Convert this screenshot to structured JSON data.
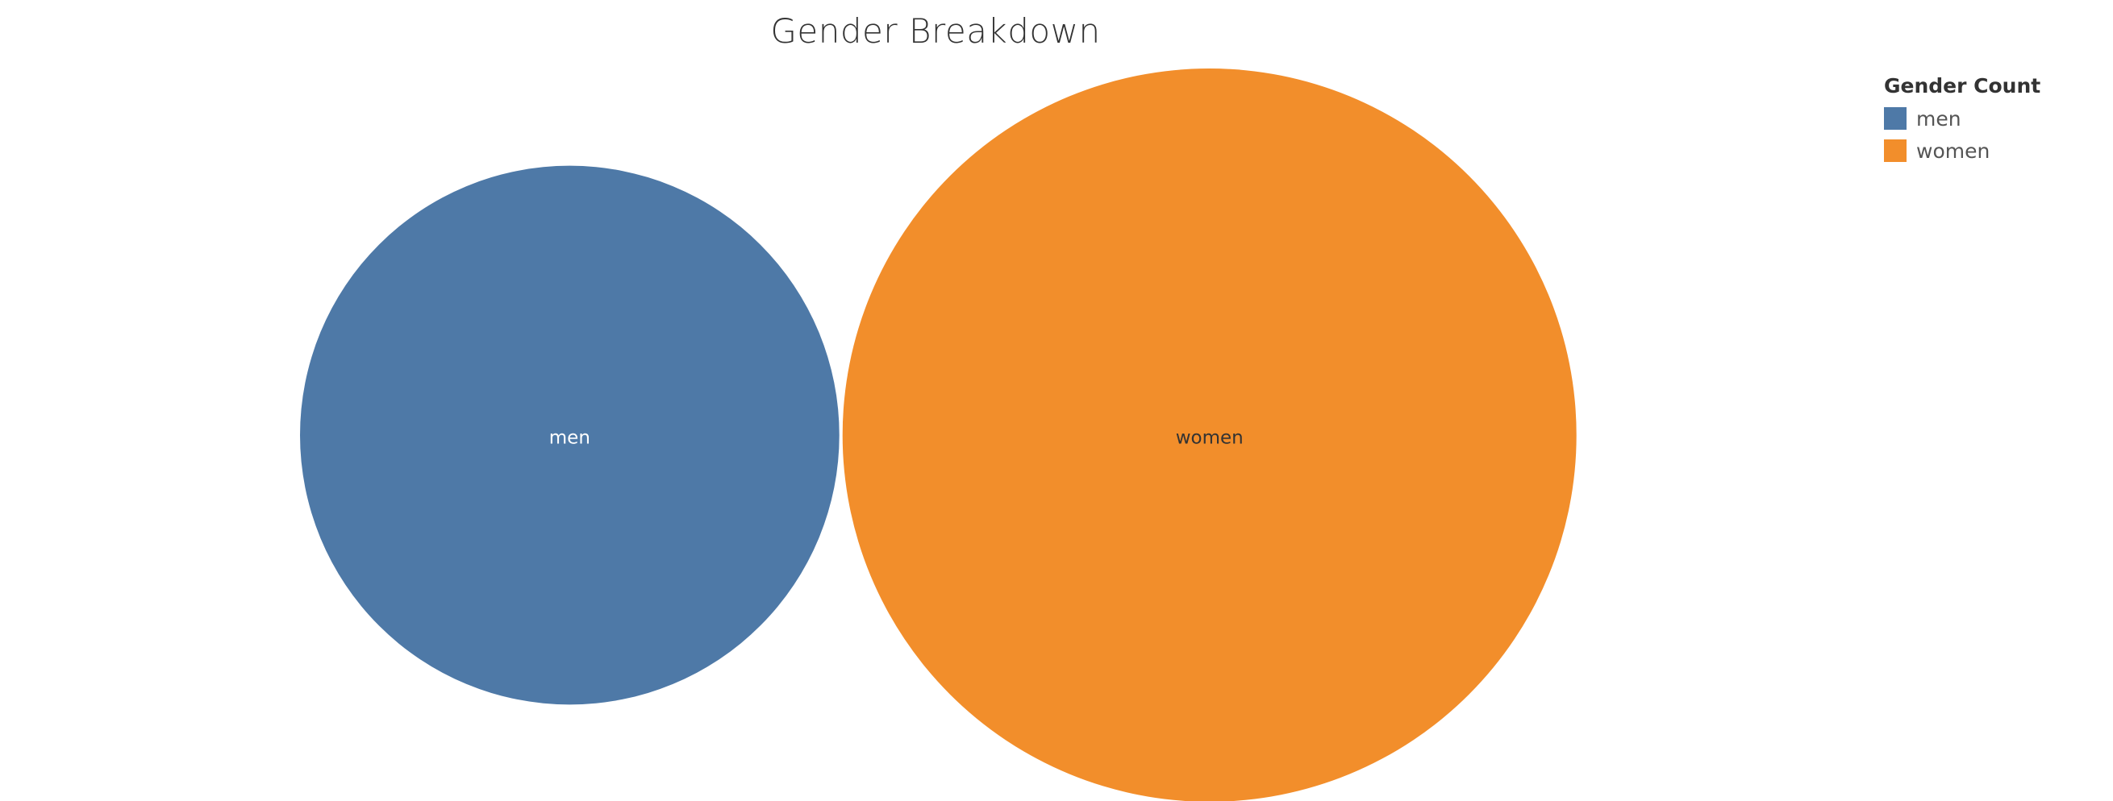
{
  "chart_data": {
    "type": "bubble",
    "title": "Gender Breakdown",
    "legend": {
      "title": "Gender Count",
      "position": "top-right"
    },
    "series": [
      {
        "name": "men",
        "value": 54,
        "color": "#4e79a7",
        "label_color": "#ffffff"
      },
      {
        "name": "women",
        "value": 100,
        "color": "#f28e2b",
        "label_color": "#333333"
      }
    ]
  }
}
